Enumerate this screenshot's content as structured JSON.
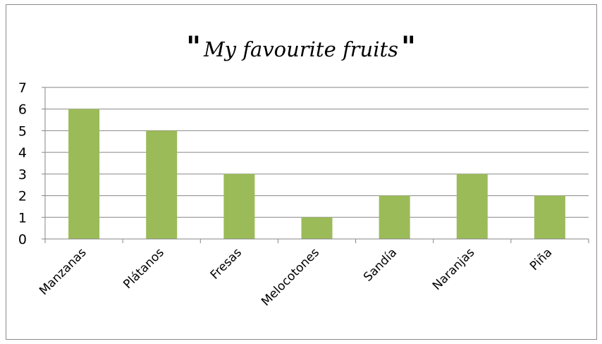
{
  "chart_data": {
    "type": "bar",
    "title": "My favourite fruits",
    "title_quote_open": "\"",
    "title_quote_close": "\"",
    "categories": [
      "Manzanas",
      "Plátanos",
      "Fresas",
      "Melocotones",
      "Sandía",
      "Naranjas",
      "Piña"
    ],
    "values": [
      6,
      5,
      3,
      1,
      2,
      3,
      2
    ],
    "xlabel": "",
    "ylabel": "",
    "ylim": [
      0,
      7
    ],
    "yticks": [
      0,
      1,
      2,
      3,
      4,
      5,
      6,
      7
    ],
    "grid": true,
    "legend": "none",
    "bar_color": "#9bbb59",
    "grid_color": "#868686"
  }
}
